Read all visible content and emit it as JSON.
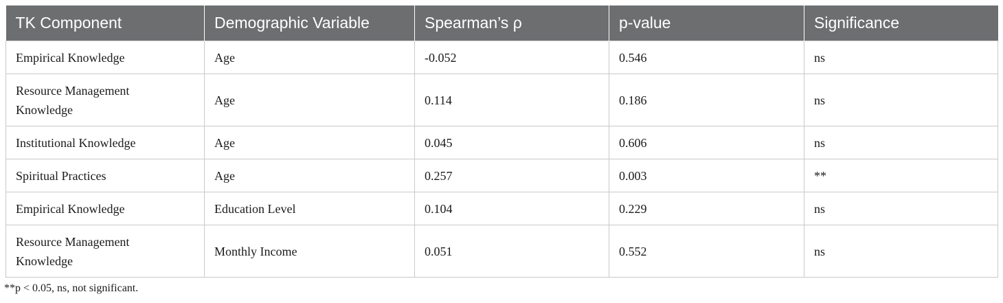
{
  "table": {
    "headers": [
      "TK Component",
      "Demographic Variable",
      "Spearman’s ρ",
      "p-value",
      "Significance"
    ],
    "rows": [
      {
        "component": "Empirical Knowledge",
        "variable": "Age",
        "rho": "-0.052",
        "p": "0.546",
        "sig": "ns"
      },
      {
        "component": "Resource Management Knowledge",
        "variable": "Age",
        "rho": "0.114",
        "p": "0.186",
        "sig": "ns"
      },
      {
        "component": "Institutional Knowledge",
        "variable": "Age",
        "rho": "0.045",
        "p": "0.606",
        "sig": "ns"
      },
      {
        "component": "Spiritual Practices",
        "variable": "Age",
        "rho": "0.257",
        "p": "0.003",
        "sig": "**"
      },
      {
        "component": "Empirical Knowledge",
        "variable": "Education Level",
        "rho": "0.104",
        "p": "0.229",
        "sig": "ns"
      },
      {
        "component": "Resource Management Knowledge",
        "variable": "Monthly Income",
        "rho": "0.051",
        "p": "0.552",
        "sig": "ns"
      }
    ]
  },
  "footnote": "**p < 0.05, ns, not significant."
}
